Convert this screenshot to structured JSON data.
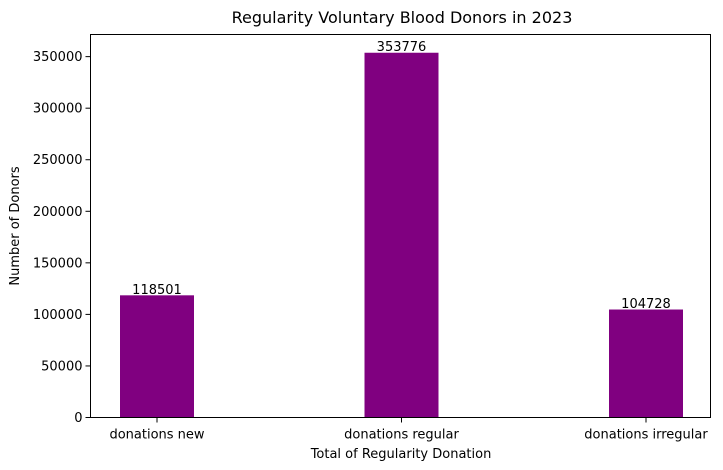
{
  "chart_data": {
    "type": "bar",
    "title": "Regularity Voluntary Blood Donors in 2023",
    "xlabel": "Total of Regularity Donation",
    "ylabel": "Number of Donors",
    "categories": [
      "donations new",
      "donations regular",
      "donations irregular"
    ],
    "values": [
      118501,
      353776,
      104728
    ],
    "data_labels": [
      "118501",
      "353776",
      "104728"
    ],
    "yticks": [
      0,
      50000,
      100000,
      150000,
      200000,
      250000,
      300000,
      350000
    ],
    "ytick_labels": [
      "0",
      "50000",
      "100000",
      "150000",
      "200000",
      "250000",
      "300000",
      "350000"
    ],
    "ylim": [
      0,
      371465
    ],
    "grid": false,
    "bar_color": "#800080"
  }
}
